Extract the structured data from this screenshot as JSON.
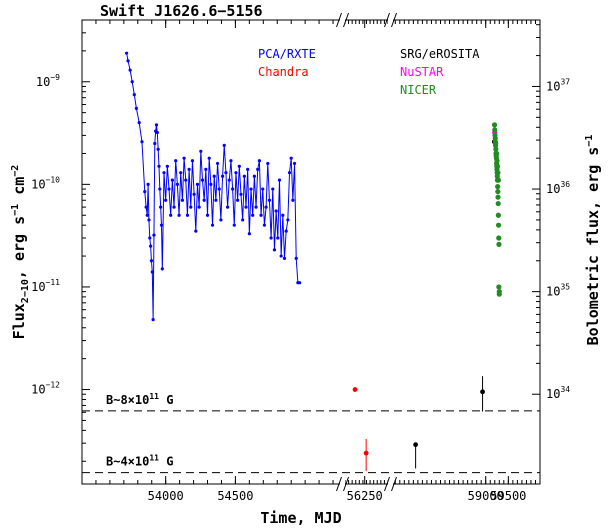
{
  "chart_data": {
    "type": "scatter",
    "title": "Swift J1626.6−5156",
    "xlabel": "Time, MJD",
    "ylabel_left": {
      "base": "Flux",
      "sub": "2−10",
      "rest": ", erg s",
      "sup1": "−1",
      "mid": " cm",
      "sup2": "−2"
    },
    "ylabel_right": {
      "base": "Bolometric flux, erg s",
      "sup": "−1"
    },
    "y_scale": "log",
    "ylim": [
      1.2e-13,
      4e-09
    ],
    "x_segments": [
      {
        "range": [
          53400,
          55250
        ],
        "ticks": [
          54000,
          54500
        ]
      },
      {
        "range": [
          55700,
          56900
        ],
        "ticks": [
          56250
        ]
      },
      {
        "range": [
          56950,
          60200
        ],
        "ticks": [
          59000,
          59500
        ]
      }
    ],
    "x_tick_labels": [
      "54000",
      "54500",
      "56250",
      "59000",
      "59500"
    ],
    "y_left_ticks": [
      {
        "value": 1e-09,
        "label": "10",
        "exp": "−9"
      },
      {
        "value": 1e-10,
        "label": "10",
        "exp": "−10"
      },
      {
        "value": 1e-11,
        "label": "10",
        "exp": "−11"
      },
      {
        "value": 1e-12,
        "label": "10",
        "exp": "−12"
      }
    ],
    "y_right_ticks": [
      {
        "value": 9e-10,
        "label": "10",
        "exp": "37"
      },
      {
        "value": 9e-11,
        "label": "10",
        "exp": "36"
      },
      {
        "value": 9e-12,
        "label": "10",
        "exp": "35"
      },
      {
        "value": 9e-13,
        "label": "10",
        "exp": "34"
      }
    ],
    "legend": [
      {
        "name": "PCA/RXTE",
        "color": "#0000ff"
      },
      {
        "name": "Chandra",
        "color": "#ff0000"
      },
      {
        "name": "SRG/eROSITA",
        "color": "#000000"
      },
      {
        "name": "NuSTAR",
        "color": "#ff00ff"
      },
      {
        "name": "NICER",
        "color": "#228b22"
      }
    ],
    "annotations": [
      {
        "text": "B~8×10",
        "sup": "11",
        "tail": " G",
        "y": 6.2e-13
      },
      {
        "text": "B~4×10",
        "sup": "11",
        "tail": " G",
        "y": 1.55e-13
      }
    ],
    "series": [
      {
        "name": "PCA/RXTE",
        "color": "#0000ff",
        "style": "line",
        "x": [
          53720,
          53730,
          53745,
          53760,
          53775,
          53790,
          53810,
          53830,
          53850,
          53860,
          53868,
          53874,
          53880,
          53886,
          53892,
          53898,
          53904,
          53910,
          53916,
          53922,
          53928,
          53934,
          53940,
          53946,
          53952,
          53958,
          53964,
          53970,
          53976,
          53988,
          54000,
          54012,
          54024,
          54036,
          54048,
          54060,
          54072,
          54084,
          54096,
          54108,
          54120,
          54132,
          54144,
          54156,
          54168,
          54180,
          54192,
          54204,
          54216,
          54228,
          54240,
          54252,
          54264,
          54276,
          54288,
          54300,
          54312,
          54324,
          54336,
          54348,
          54360,
          54372,
          54384,
          54396,
          54408,
          54420,
          54432,
          54444,
          54456,
          54468,
          54480,
          54492,
          54504,
          54516,
          54528,
          54540,
          54552,
          54564,
          54576,
          54588,
          54600,
          54612,
          54624,
          54636,
          54648,
          54660,
          54672,
          54684,
          54696,
          54708,
          54720,
          54732,
          54744,
          54756,
          54768,
          54780,
          54792,
          54804,
          54816,
          54828,
          54840,
          54852,
          54864,
          54876,
          54888,
          54900,
          54912,
          54924,
          54936,
          54948,
          54960
        ],
        "y": [
          1.9e-09,
          1.6e-09,
          1.3e-09,
          1e-09,
          7.5e-10,
          5.5e-10,
          4e-10,
          2.6e-10,
          8.5e-11,
          6e-11,
          5e-11,
          1e-10,
          4.5e-11,
          3e-11,
          2.5e-11,
          1.8e-11,
          1.4e-11,
          4.8e-12,
          3.2e-11,
          2.5e-10,
          3.3e-10,
          3.8e-10,
          3.2e-10,
          2.2e-10,
          1.5e-10,
          9e-11,
          6e-11,
          4e-11,
          1.5e-11,
          1.3e-10,
          7e-11,
          1.5e-10,
          9e-11,
          5e-11,
          1.1e-10,
          6e-11,
          1.7e-10,
          1e-10,
          5e-11,
          1.3e-10,
          7e-11,
          1.8e-10,
          1.1e-10,
          5e-11,
          1.4e-10,
          6e-11,
          1.7e-10,
          8e-11,
          3.5e-11,
          1e-10,
          6e-11,
          2.1e-10,
          1.1e-10,
          7e-11,
          1.4e-10,
          5e-11,
          1.8e-10,
          1e-10,
          4e-11,
          1.2e-10,
          7e-11,
          1.6e-10,
          9e-11,
          4.5e-11,
          1.2e-10,
          2.4e-10,
          1.3e-10,
          6e-11,
          1.1e-10,
          1.7e-10,
          9e-11,
          4e-11,
          1.3e-10,
          7e-11,
          1.5e-10,
          8e-11,
          4.5e-11,
          1.2e-10,
          6e-11,
          1.4e-10,
          3.3e-11,
          9e-11,
          5e-11,
          1.2e-10,
          6e-11,
          1.4e-10,
          1.7e-10,
          5e-11,
          9e-11,
          4e-11,
          6e-11,
          1.6e-10,
          7e-11,
          3e-11,
          9e-11,
          2.3e-11,
          5.5e-11,
          3e-11,
          1.1e-10,
          2e-11,
          5e-11,
          1.9e-11,
          3.5e-11,
          4.5e-11,
          1.3e-10,
          1.8e-10,
          7e-11,
          1.6e-10,
          1.9e-11,
          1.1e-11,
          1.1e-11
        ]
      },
      {
        "name": "Chandra",
        "color": "#ff0000",
        "style": "errorbar",
        "points": [
          {
            "x": 55980,
            "y": 1e-12,
            "ylo": 9.5e-13,
            "yhi": 1.05e-12
          },
          {
            "x": 56290,
            "y": 2.4e-13,
            "ylo": 1.6e-13,
            "yhi": 3.3e-13
          }
        ]
      },
      {
        "name": "SRG/eROSITA",
        "color": "#000000",
        "style": "errorbar",
        "points": [
          {
            "x": 57450,
            "y": 2.9e-13,
            "ylo": 1.7e-13,
            "yhi": 2.9e-13
          },
          {
            "x": 58930,
            "y": 9.5e-13,
            "ylo": 6.1e-13,
            "yhi": 1.35e-12
          },
          {
            "x": 59190,
            "y": 2.6e-10,
            "ylo": 2.4e-10,
            "yhi": 2.8e-10
          }
        ]
      },
      {
        "name": "NuSTAR",
        "color": "#ff00ff",
        "style": "scatter",
        "x": [
          59200
        ],
        "y": [
          3.2e-10
        ]
      },
      {
        "name": "NICER",
        "color": "#228b22",
        "style": "scatter",
        "x": [
          59195,
          59200,
          59205,
          59210,
          59213,
          59216,
          59220,
          59224,
          59228,
          59232,
          59236,
          59240,
          59244,
          59248,
          59252,
          59256,
          59260,
          59264,
          59268,
          59272,
          59276,
          59280,
          59284,
          59288,
          59292,
          59240,
          59250,
          59260,
          59270,
          59280,
          59290,
          59300,
          59300
        ],
        "y": [
          3.8e-10,
          3.4e-10,
          3e-10,
          2.8e-10,
          2.6e-10,
          2.4e-10,
          2.5e-10,
          2.2e-10,
          2e-10,
          1.9e-10,
          1.8e-10,
          1.6e-10,
          1.5e-10,
          1.4e-10,
          1.3e-10,
          1.2e-10,
          1.1e-10,
          9.5e-11,
          8.5e-11,
          7.5e-11,
          6.5e-11,
          5e-11,
          4e-11,
          3e-11,
          2.6e-11,
          2e-10,
          1.7e-10,
          1.5e-10,
          1.3e-10,
          1.1e-10,
          1e-11,
          9e-12,
          8.5e-12
        ]
      }
    ]
  }
}
